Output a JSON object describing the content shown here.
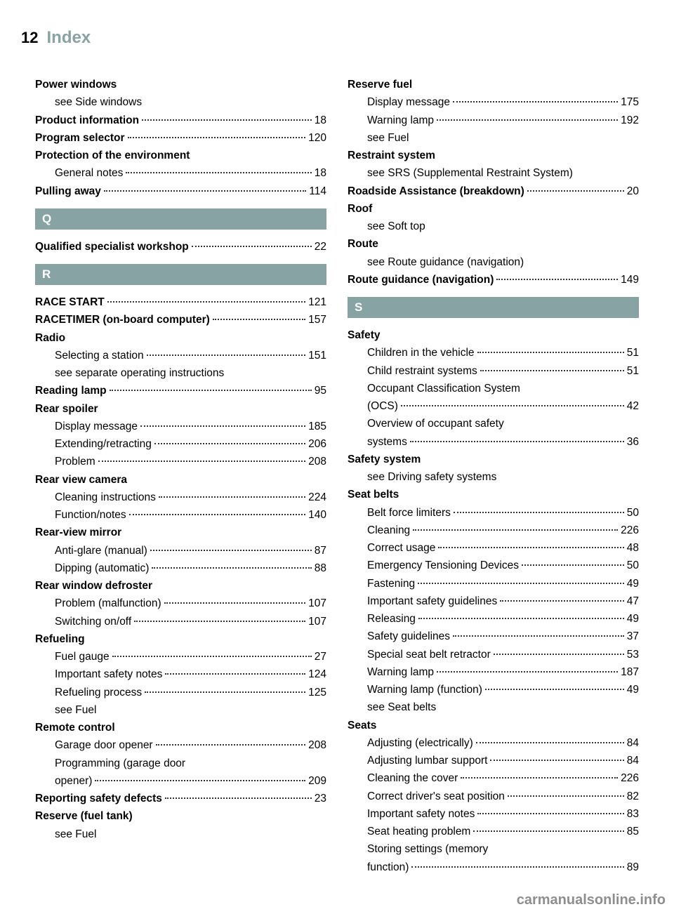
{
  "header": {
    "page_number": "12",
    "title": "Index"
  },
  "watermark": "carmanualsonline.info",
  "left_column": [
    {
      "type": "heading",
      "label": "Power windows"
    },
    {
      "type": "sub",
      "label": "see Side windows"
    },
    {
      "type": "entry",
      "label": "Product information",
      "bold": true,
      "page": "18"
    },
    {
      "type": "entry",
      "label": "Program selector",
      "bold": true,
      "page": "120"
    },
    {
      "type": "heading",
      "label": "Protection of the environment"
    },
    {
      "type": "sub-entry",
      "label": "General notes",
      "page": "18"
    },
    {
      "type": "entry",
      "label": "Pulling away",
      "bold": true,
      "page": "114"
    },
    {
      "type": "letter",
      "label": "Q"
    },
    {
      "type": "entry",
      "label": "Qualified specialist workshop",
      "bold": true,
      "page": "22"
    },
    {
      "type": "letter",
      "label": "R"
    },
    {
      "type": "entry",
      "label": "RACE START",
      "bold": true,
      "page": "121"
    },
    {
      "type": "entry",
      "label": "RACETIMER (on-board computer)",
      "bold": true,
      "page": "157"
    },
    {
      "type": "heading",
      "label": "Radio"
    },
    {
      "type": "sub-entry",
      "label": "Selecting a station",
      "page": "151"
    },
    {
      "type": "sub",
      "label": "see separate operating instructions"
    },
    {
      "type": "entry",
      "label": "Reading lamp",
      "bold": true,
      "page": "95"
    },
    {
      "type": "heading",
      "label": "Rear spoiler"
    },
    {
      "type": "sub-entry",
      "label": "Display message",
      "page": "185"
    },
    {
      "type": "sub-entry",
      "label": "Extending/retracting",
      "page": "206"
    },
    {
      "type": "sub-entry",
      "label": "Problem",
      "page": "208"
    },
    {
      "type": "heading",
      "label": "Rear view camera"
    },
    {
      "type": "sub-entry",
      "label": "Cleaning instructions",
      "page": "224"
    },
    {
      "type": "sub-entry",
      "label": "Function/notes",
      "page": "140"
    },
    {
      "type": "heading",
      "label": "Rear-view mirror"
    },
    {
      "type": "sub-entry",
      "label": "Anti-glare (manual)",
      "page": "87"
    },
    {
      "type": "sub-entry",
      "label": "Dipping (automatic)",
      "page": "88"
    },
    {
      "type": "heading",
      "label": "Rear window defroster"
    },
    {
      "type": "sub-entry",
      "label": "Problem (malfunction)",
      "page": "107"
    },
    {
      "type": "sub-entry",
      "label": "Switching on/off",
      "page": "107"
    },
    {
      "type": "heading",
      "label": "Refueling"
    },
    {
      "type": "sub-entry",
      "label": "Fuel gauge",
      "page": "27"
    },
    {
      "type": "sub-entry",
      "label": "Important safety notes",
      "page": "124"
    },
    {
      "type": "sub-entry",
      "label": "Refueling process",
      "page": "125"
    },
    {
      "type": "sub",
      "label": "see Fuel"
    },
    {
      "type": "heading",
      "label": "Remote control"
    },
    {
      "type": "sub-entry",
      "label": "Garage door opener",
      "page": "208"
    },
    {
      "type": "sub-entry-wrap",
      "label": "Programming (garage door opener)",
      "page": "209"
    },
    {
      "type": "entry",
      "label": "Reporting safety defects",
      "bold": true,
      "page": "23"
    },
    {
      "type": "heading",
      "label": "Reserve (fuel tank)"
    },
    {
      "type": "sub",
      "label": "see Fuel"
    }
  ],
  "right_column": [
    {
      "type": "heading",
      "label": "Reserve fuel"
    },
    {
      "type": "sub-entry",
      "label": "Display message",
      "page": "175"
    },
    {
      "type": "sub-entry",
      "label": "Warning lamp",
      "page": "192"
    },
    {
      "type": "sub",
      "label": "see Fuel"
    },
    {
      "type": "heading",
      "label": "Restraint system"
    },
    {
      "type": "sub-wrap",
      "label": "see SRS (Supplemental Restraint System)"
    },
    {
      "type": "entry",
      "label": "Roadside Assistance (breakdown)",
      "bold": true,
      "page": "20"
    },
    {
      "type": "heading",
      "label": "Roof"
    },
    {
      "type": "sub",
      "label": "see Soft top"
    },
    {
      "type": "heading",
      "label": "Route"
    },
    {
      "type": "sub",
      "label": "see Route guidance (navigation)"
    },
    {
      "type": "entry",
      "label": "Route guidance (navigation)",
      "bold": true,
      "page": "149"
    },
    {
      "type": "letter",
      "label": "S"
    },
    {
      "type": "heading",
      "label": "Safety"
    },
    {
      "type": "sub-entry",
      "label": "Children in the vehicle",
      "page": "51"
    },
    {
      "type": "sub-entry",
      "label": "Child restraint systems",
      "page": "51"
    },
    {
      "type": "sub-entry-wrap",
      "label": "Occupant Classification System (OCS)",
      "page": "42"
    },
    {
      "type": "sub-entry-wrap",
      "label": "Overview of occupant safety systems",
      "page": "36"
    },
    {
      "type": "heading",
      "label": "Safety system"
    },
    {
      "type": "sub",
      "label": "see Driving safety systems"
    },
    {
      "type": "heading",
      "label": "Seat belts"
    },
    {
      "type": "sub-entry",
      "label": "Belt force limiters",
      "page": "50"
    },
    {
      "type": "sub-entry",
      "label": "Cleaning",
      "page": "226"
    },
    {
      "type": "sub-entry",
      "label": "Correct usage",
      "page": "48"
    },
    {
      "type": "sub-entry",
      "label": "Emergency Tensioning Devices",
      "page": "50"
    },
    {
      "type": "sub-entry",
      "label": "Fastening",
      "page": "49"
    },
    {
      "type": "sub-entry",
      "label": "Important safety guidelines",
      "page": "47"
    },
    {
      "type": "sub-entry",
      "label": "Releasing",
      "page": "49"
    },
    {
      "type": "sub-entry",
      "label": "Safety guidelines",
      "page": "37"
    },
    {
      "type": "sub-entry",
      "label": "Special seat belt retractor",
      "page": "53"
    },
    {
      "type": "sub-entry",
      "label": "Warning lamp",
      "page": "187"
    },
    {
      "type": "sub-entry",
      "label": "Warning lamp (function)",
      "page": "49"
    },
    {
      "type": "sub",
      "label": "see Seat belts"
    },
    {
      "type": "heading",
      "label": "Seats"
    },
    {
      "type": "sub-entry",
      "label": "Adjusting (electrically)",
      "page": "84"
    },
    {
      "type": "sub-entry",
      "label": "Adjusting lumbar support",
      "page": "84"
    },
    {
      "type": "sub-entry",
      "label": "Cleaning the cover",
      "page": "226"
    },
    {
      "type": "sub-entry",
      "label": "Correct driver's seat position",
      "page": "82"
    },
    {
      "type": "sub-entry",
      "label": "Important safety notes",
      "page": "83"
    },
    {
      "type": "sub-entry",
      "label": "Seat heating problem",
      "page": "85"
    },
    {
      "type": "sub-entry-wrap",
      "label": "Storing settings (memory function)",
      "page": "89"
    }
  ]
}
